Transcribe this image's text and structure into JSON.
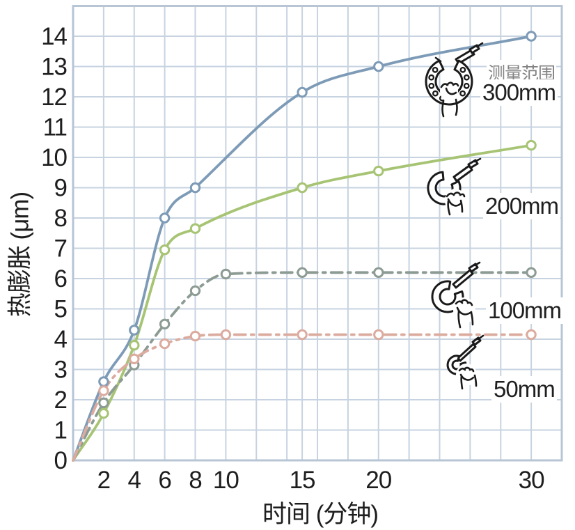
{
  "chart_data": {
    "type": "line",
    "title": "",
    "xlabel": "时间 (分钟)",
    "ylabel": "热膨胀 (μm)",
    "xlim": [
      0,
      32
    ],
    "ylim": [
      0,
      15
    ],
    "x_ticks": [
      2,
      4,
      6,
      8,
      10,
      15,
      20,
      30
    ],
    "y_ticks": [
      0,
      1,
      2,
      3,
      4,
      5,
      6,
      7,
      8,
      9,
      10,
      11,
      12,
      13,
      14
    ],
    "x_gridlines": [
      2,
      4,
      6,
      8,
      10,
      12,
      14,
      15,
      16,
      18,
      20,
      22,
      24,
      26,
      28,
      30
    ],
    "y_gridlines": [
      1,
      2,
      3,
      4,
      5,
      6,
      7,
      8,
      9,
      10,
      11,
      12,
      13,
      14
    ],
    "grid": true,
    "legend_title": "测量范围",
    "legend_position": "right-inside",
    "series": [
      {
        "name": "300mm",
        "color": "#7d9bb7",
        "line_style": "solid",
        "marker": "circle-open",
        "x": [
          0,
          2,
          4,
          6,
          8,
          15,
          20,
          30
        ],
        "y": [
          0,
          2.6,
          4.3,
          8.0,
          9.0,
          12.15,
          13.0,
          14.0
        ]
      },
      {
        "name": "200mm",
        "color": "#a6c473",
        "line_style": "solid",
        "marker": "circle-open",
        "x": [
          0,
          2,
          4,
          6,
          8,
          15,
          20,
          30
        ],
        "y": [
          0,
          1.55,
          3.8,
          6.95,
          7.65,
          9.0,
          9.55,
          10.4
        ]
      },
      {
        "name": "100mm",
        "color": "#8c9b93",
        "line_style": "dashdot",
        "marker": "circle-open",
        "x": [
          0,
          2,
          4,
          6,
          8,
          10,
          15,
          20,
          30
        ],
        "y": [
          0,
          1.9,
          3.15,
          4.5,
          5.6,
          6.15,
          6.2,
          6.2,
          6.2
        ]
      },
      {
        "name": "50mm",
        "color": "#dcab9f",
        "line_style": "dashdot",
        "marker": "circle-open",
        "x": [
          0,
          2,
          4,
          6,
          8,
          10,
          15,
          20,
          30
        ],
        "y": [
          0,
          2.3,
          3.35,
          3.85,
          4.1,
          4.15,
          4.15,
          4.15,
          4.15
        ]
      }
    ]
  },
  "colors": {
    "grid": "#c7d3e0",
    "frame": "#b7c5d5",
    "tick_text": "#1e1e1e",
    "legend_title_text": "#828282",
    "series_label_text": "#1f1f1f",
    "background": "#ffffff"
  }
}
